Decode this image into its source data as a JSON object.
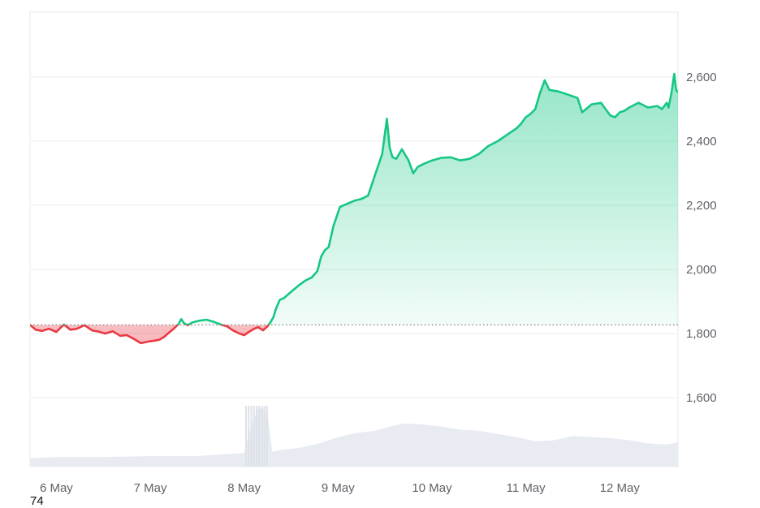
{
  "corner_label": "74",
  "chart_data": {
    "type": "line",
    "title": "",
    "xlabel": "",
    "ylabel": "",
    "x_tick_labels": [
      "6 May",
      "7 May",
      "8 May",
      "9 May",
      "10 May",
      "11 May",
      "12 May"
    ],
    "y_tick_labels": [
      "1,600",
      "1,800",
      "2,000",
      "2,200",
      "2,400",
      "2,600"
    ],
    "y_ticks": [
      1600,
      1800,
      2000,
      2200,
      2400,
      2600
    ],
    "ylim": [
      1400,
      2800
    ],
    "xlim": [
      5.72,
      12.62
    ],
    "baseline": 1827,
    "up_color": "#16c784",
    "down_color": "#ea3943",
    "grid": true,
    "series": [
      {
        "x": [
          5.72,
          5.78,
          5.85,
          5.92,
          6.0,
          6.08,
          6.15,
          6.22,
          6.3,
          6.38,
          6.45,
          6.52,
          6.6,
          6.68,
          6.75,
          6.82,
          6.9,
          6.98,
          7.05,
          7.1,
          7.15,
          7.2,
          7.25,
          7.3,
          7.33,
          7.36,
          7.4,
          7.45,
          7.52,
          7.6,
          7.68,
          7.75,
          7.82,
          7.88,
          7.95,
          8.0,
          8.05,
          8.1,
          8.15,
          8.2,
          8.25,
          8.28,
          8.31,
          8.34,
          8.38,
          8.42,
          8.5,
          8.58,
          8.65,
          8.72,
          8.78,
          8.82,
          8.86,
          8.9,
          8.95,
          9.02,
          9.1,
          9.18,
          9.25,
          9.32,
          9.4,
          9.47,
          9.52,
          9.55,
          9.58,
          9.62,
          9.68,
          9.75,
          9.8,
          9.85,
          9.92,
          10.0,
          10.1,
          10.2,
          10.3,
          10.4,
          10.5,
          10.6,
          10.7,
          10.8,
          10.9,
          10.95,
          11.0,
          11.05,
          11.1,
          11.15,
          11.2,
          11.25,
          11.35,
          11.45,
          11.55,
          11.6,
          11.7,
          11.8,
          11.85,
          11.9,
          11.95,
          12.0,
          12.05,
          12.1,
          12.2,
          12.3,
          12.4,
          12.45,
          12.5,
          12.52,
          12.55,
          12.58,
          12.6,
          12.62
        ],
        "y": [
          1827,
          1812,
          1808,
          1815,
          1805,
          1828,
          1812,
          1815,
          1826,
          1810,
          1806,
          1800,
          1807,
          1793,
          1795,
          1784,
          1770,
          1775,
          1778,
          1781,
          1790,
          1803,
          1815,
          1829,
          1845,
          1832,
          1826,
          1835,
          1840,
          1843,
          1836,
          1828,
          1822,
          1810,
          1800,
          1795,
          1805,
          1814,
          1820,
          1810,
          1823,
          1835,
          1850,
          1878,
          1905,
          1910,
          1930,
          1950,
          1965,
          1975,
          1995,
          2040,
          2060,
          2070,
          2135,
          2195,
          2205,
          2215,
          2220,
          2230,
          2300,
          2360,
          2470,
          2380,
          2350,
          2345,
          2375,
          2340,
          2300,
          2320,
          2330,
          2340,
          2348,
          2350,
          2340,
          2345,
          2360,
          2385,
          2400,
          2420,
          2440,
          2455,
          2475,
          2485,
          2500,
          2550,
          2590,
          2560,
          2555,
          2545,
          2535,
          2490,
          2515,
          2520,
          2500,
          2480,
          2475,
          2490,
          2495,
          2505,
          2520,
          2505,
          2510,
          2500,
          2520,
          2505,
          2550,
          2610,
          2560,
          2552
        ]
      }
    ],
    "volume": {
      "x": [
        5.72,
        6.0,
        6.5,
        7.0,
        7.5,
        8.0,
        8.05,
        8.1,
        8.15,
        8.2,
        8.25,
        8.3,
        8.4,
        8.6,
        8.8,
        9.0,
        9.2,
        9.4,
        9.55,
        9.7,
        9.9,
        10.1,
        10.3,
        10.5,
        10.7,
        10.9,
        11.1,
        11.3,
        11.5,
        11.7,
        11.9,
        12.1,
        12.3,
        12.5,
        12.62
      ],
      "values": [
        8,
        9,
        9,
        10,
        10,
        13,
        30,
        45,
        55,
        55,
        50,
        14,
        16,
        18,
        22,
        28,
        32,
        34,
        38,
        41,
        40,
        38,
        35,
        34,
        31,
        28,
        24,
        25,
        29,
        28,
        27,
        25,
        22,
        21,
        23
      ]
    }
  }
}
